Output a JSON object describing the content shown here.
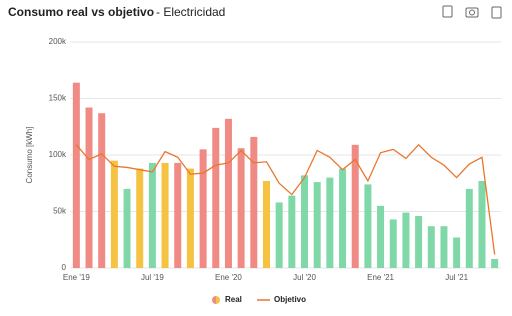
{
  "chart_data": {
    "type": "bar-line",
    "title": "Consumo real vs objetivo",
    "subtitle": "- Electricidad",
    "y_label": "Consumo [kWh]",
    "categories": [
      "Ene '19",
      null,
      null,
      null,
      null,
      null,
      "Jul '19",
      null,
      null,
      null,
      null,
      null,
      "Ene '20",
      null,
      null,
      null,
      null,
      null,
      "Jul '20",
      null,
      null,
      null,
      null,
      null,
      "Ene '21",
      null,
      null,
      null,
      null,
      null,
      "Jul '21",
      null,
      null,
      null
    ],
    "ylim": [
      0,
      200000
    ],
    "yticks": [
      0,
      {
        "value": 50000,
        "label": "50k"
      },
      {
        "value": 100000,
        "label": "100k"
      },
      {
        "value": 150000,
        "label": "150k"
      },
      {
        "value": 200000,
        "label": "200k"
      }
    ],
    "grid": true,
    "series": [
      {
        "name": "Real",
        "kind": "bar",
        "values": [
          164000,
          142000,
          137000,
          95000,
          70000,
          88000,
          93000,
          93000,
          93000,
          88000,
          105000,
          124000,
          132000,
          106000,
          116000,
          77000,
          58000,
          64000,
          82000,
          76000,
          80000,
          88000,
          109000,
          74000,
          55000,
          43000,
          49000,
          46000,
          37000,
          37000,
          27000,
          70000,
          77000,
          8000
        ],
        "colors": [
          "#f08a84",
          "#f08a84",
          "#f08a84",
          "#f5c242",
          "#80d8a8",
          "#f5c242",
          "#80d8a8",
          "#f5c242",
          "#f08a84",
          "#f5c242",
          "#f08a84",
          "#f08a84",
          "#f08a84",
          "#f08a84",
          "#f08a84",
          "#f5c242",
          "#80d8a8",
          "#80d8a8",
          "#80d8a8",
          "#80d8a8",
          "#80d8a8",
          "#80d8a8",
          "#f08a84",
          "#80d8a8",
          "#80d8a8",
          "#80d8a8",
          "#80d8a8",
          "#80d8a8",
          "#80d8a8",
          "#80d8a8",
          "#80d8a8",
          "#80d8a8",
          "#80d8a8",
          "#80d8a8"
        ]
      },
      {
        "name": "Objetivo",
        "kind": "line",
        "color": "#e8772e",
        "values": [
          109000,
          96000,
          101000,
          90000,
          89000,
          87000,
          85000,
          103000,
          98000,
          83000,
          84000,
          91000,
          93000,
          104000,
          93000,
          94000,
          75000,
          65000,
          80000,
          104000,
          98000,
          87000,
          96000,
          77000,
          102000,
          105000,
          97000,
          109000,
          98000,
          91000,
          80000,
          92000,
          98000,
          12000
        ]
      }
    ]
  }
}
